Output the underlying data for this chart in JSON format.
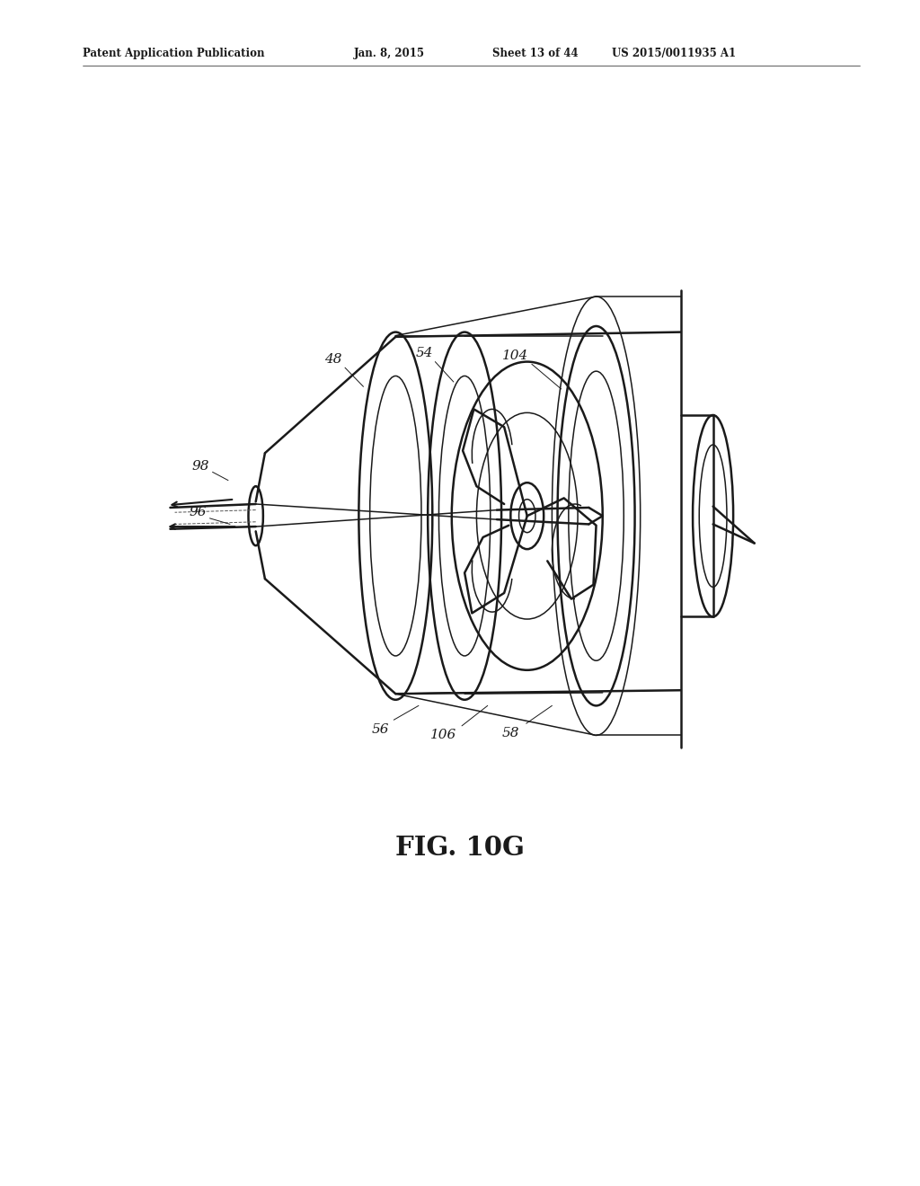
{
  "bg_color": "#ffffff",
  "line_color": "#1a1a1a",
  "fig_width": 10.24,
  "fig_height": 13.2,
  "header_text": "Patent Application Publication",
  "header_date": "Jan. 8, 2015",
  "header_sheet": "Sheet 13 of 44",
  "header_patent": "US 2015/0011935 A1",
  "figure_label": "FIG. 10G",
  "label_fontsize": 11,
  "header_fontsize": 8.5,
  "fig_caption_fontsize": 21
}
